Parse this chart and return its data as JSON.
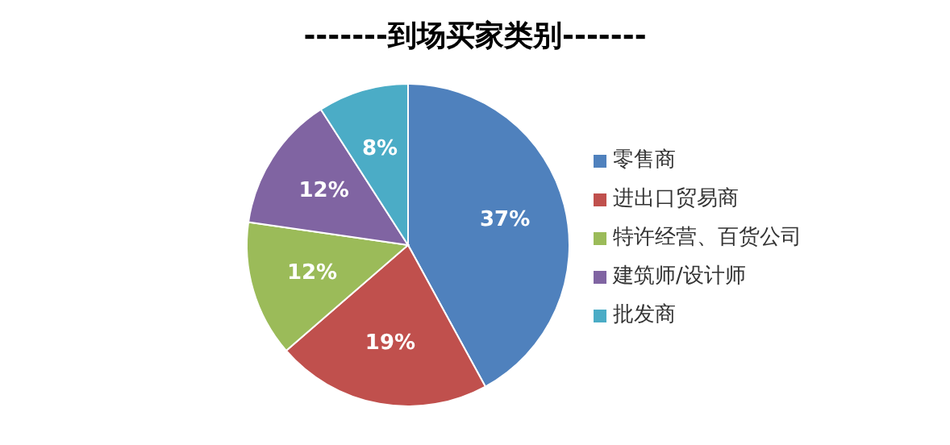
{
  "chart_data": {
    "type": "pie",
    "title": "-------到场买家类别-------",
    "categories": [
      "零售商",
      "进出口贸易商",
      "特许经营、百货公司",
      "建筑师/设计师",
      "批发商"
    ],
    "values": [
      37,
      19,
      12,
      12,
      8
    ],
    "value_labels": [
      "37%",
      "19%",
      "12%",
      "12%",
      "8%"
    ],
    "colors": [
      "#4f81bd",
      "#c0504d",
      "#9bbb59",
      "#8064a2",
      "#4bacc6"
    ],
    "legend": "right"
  }
}
